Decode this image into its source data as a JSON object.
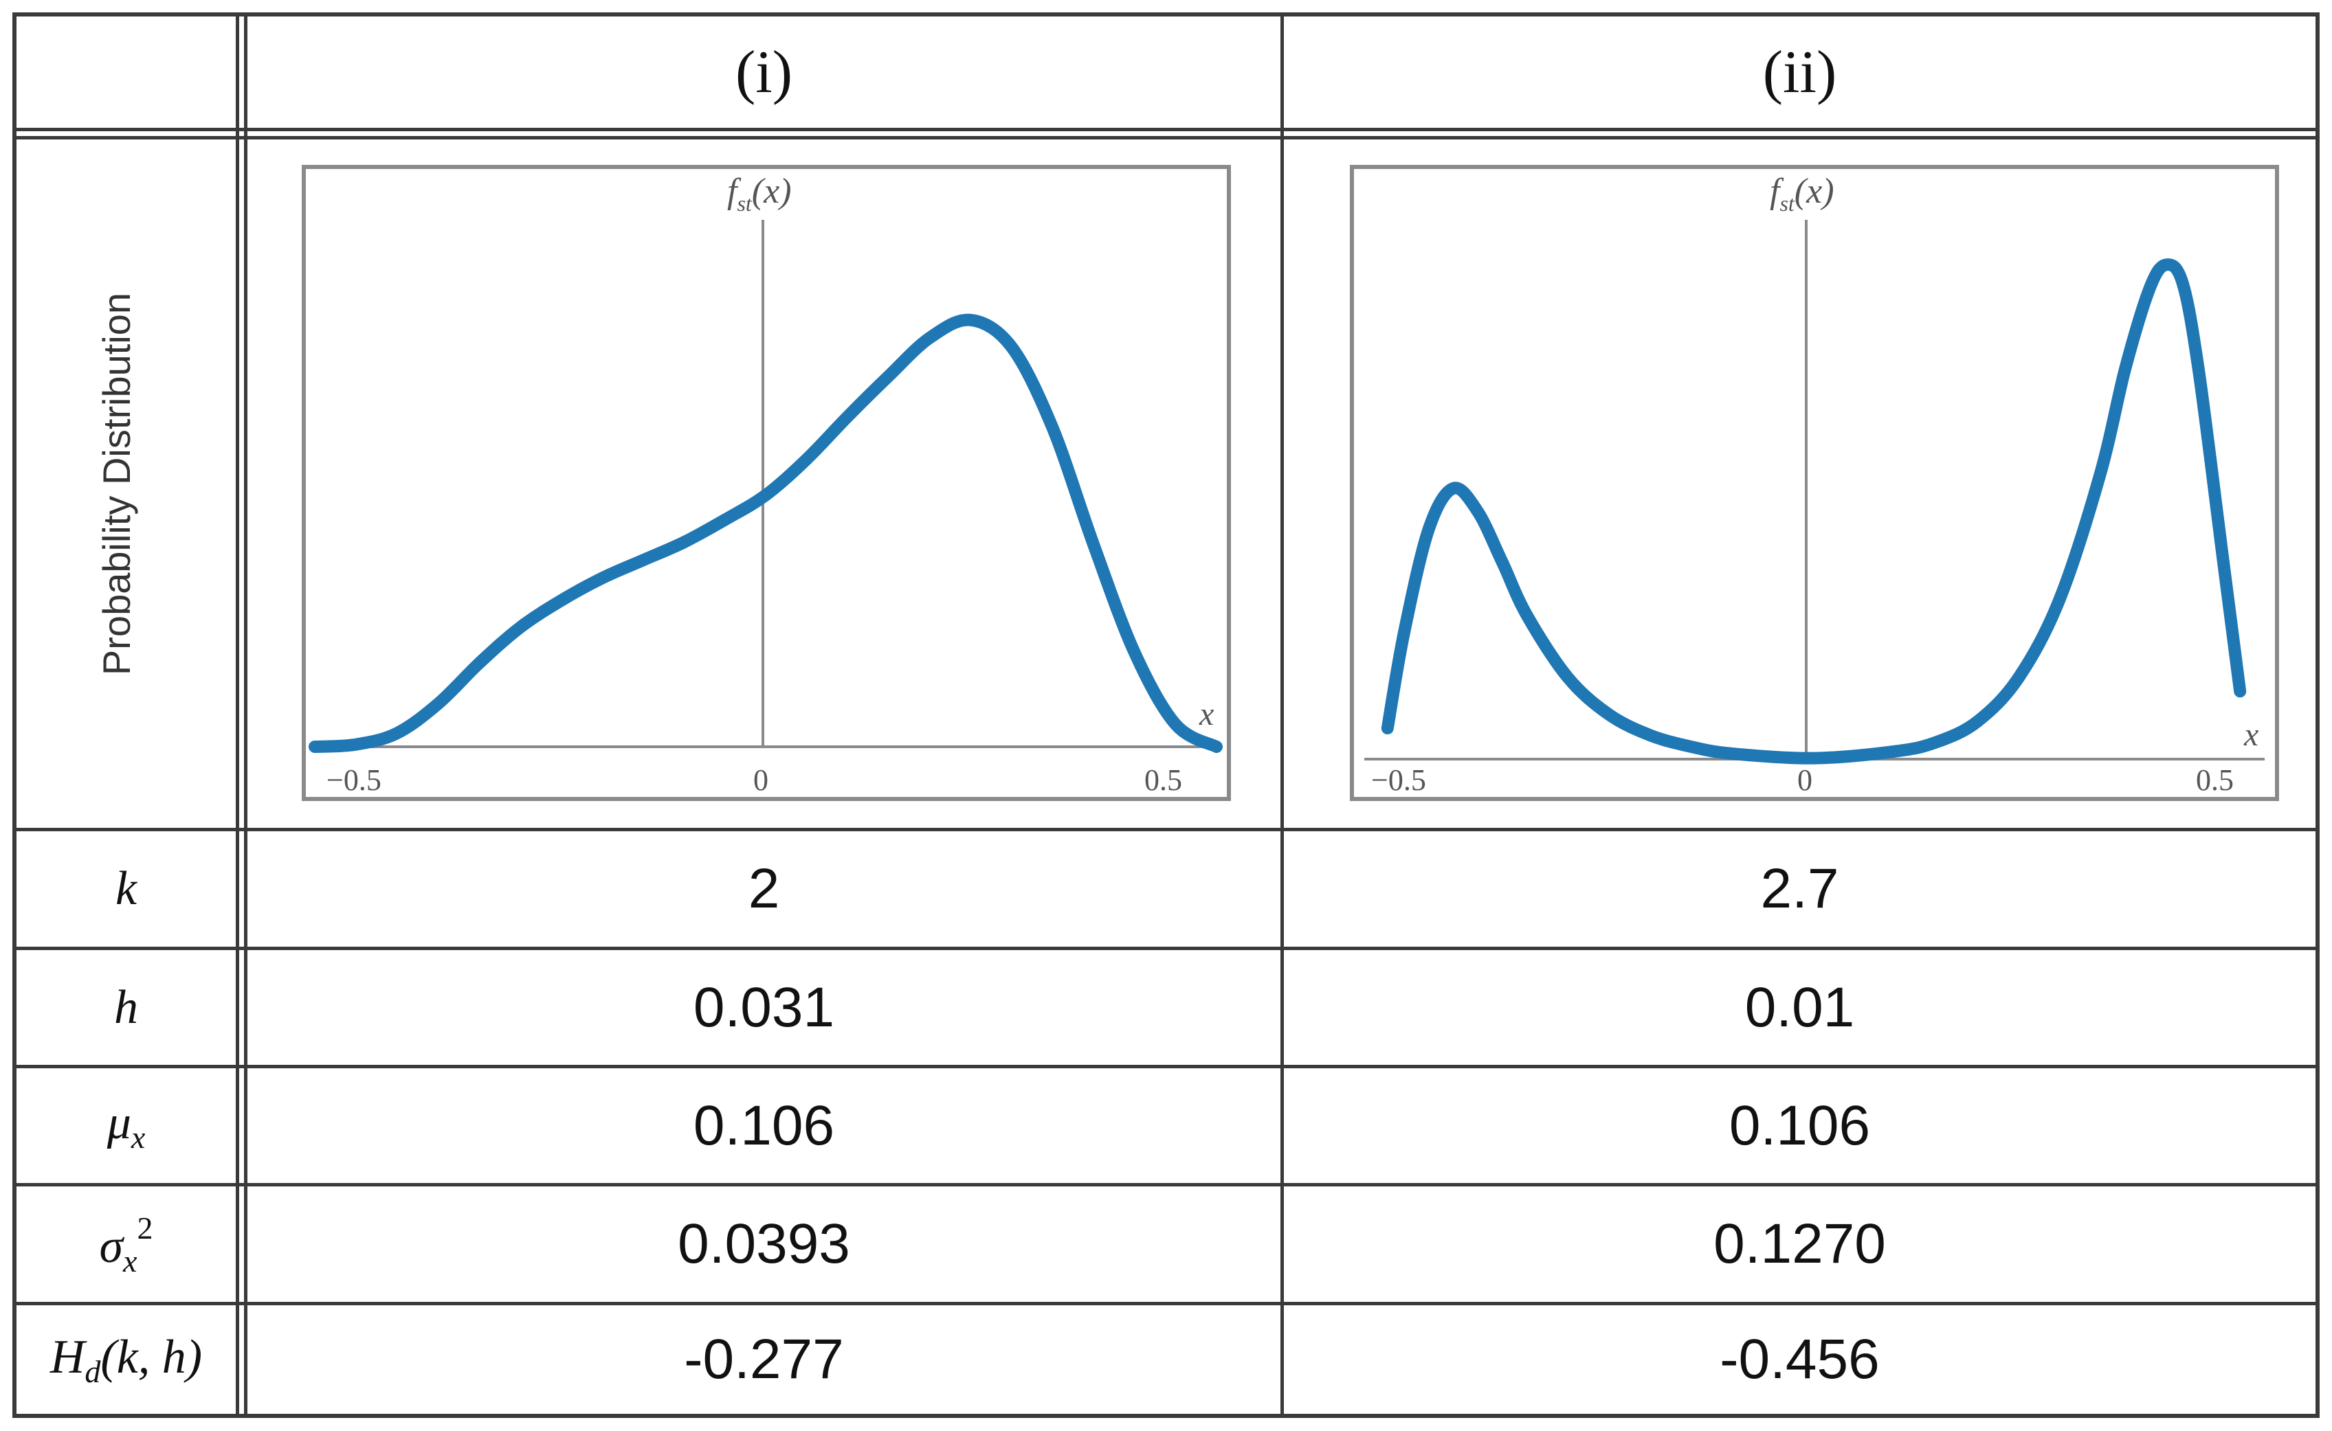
{
  "table": {
    "col_headers": [
      "(i)",
      "(ii)"
    ],
    "row_header_plot": "Probability Distribution",
    "rows": [
      {
        "symbol": "k",
        "values": [
          "2",
          "2.7"
        ]
      },
      {
        "symbol": "h",
        "values": [
          "0.031",
          "0.01"
        ]
      },
      {
        "symbol": "μ",
        "sub": "x",
        "values": [
          "0.106",
          "0.106"
        ]
      },
      {
        "symbol": "σ",
        "sub": "x",
        "sup": "2",
        "values": [
          "0.0393",
          "0.1270"
        ]
      },
      {
        "symbol": "H",
        "sub": "d",
        "args": "(k, h)",
        "values": [
          "-0.277",
          "-0.456"
        ]
      }
    ]
  },
  "chart_data": [
    {
      "type": "line",
      "ylabel": "f_st(x)",
      "xlabel": "x",
      "xticks": [
        "−0.5",
        "0",
        "0.5"
      ],
      "xlim": [
        -0.55,
        0.55
      ],
      "ylim": [
        0,
        2.3
      ],
      "line_color": "#1f77b4",
      "series": [
        {
          "x": [
            -0.55,
            -0.5,
            -0.45,
            -0.4,
            -0.35,
            -0.3,
            -0.25,
            -0.2,
            -0.15,
            -0.1,
            -0.05,
            0,
            0.05,
            0.1,
            0.15,
            0.2,
            0.25,
            0.3,
            0.35,
            0.4,
            0.45,
            0.5,
            0.55
          ],
          "y": [
            0.0,
            0.01,
            0.06,
            0.19,
            0.37,
            0.53,
            0.65,
            0.75,
            0.83,
            0.91,
            1.01,
            1.12,
            1.28,
            1.47,
            1.65,
            1.82,
            1.9,
            1.78,
            1.42,
            0.9,
            0.42,
            0.1,
            0.0
          ]
        }
      ]
    },
    {
      "type": "line",
      "ylabel": "f_st(x)",
      "xlabel": "x",
      "xticks": [
        "−0.5",
        "0",
        "0.5"
      ],
      "xlim": [
        -0.55,
        0.55
      ],
      "ylim": [
        0,
        2.3
      ],
      "line_color": "#1f77b4",
      "series": [
        {
          "x": [
            -0.52,
            -0.5,
            -0.47,
            -0.44,
            -0.41,
            -0.38,
            -0.35,
            -0.3,
            -0.25,
            -0.2,
            -0.15,
            -0.1,
            0,
            0.1,
            0.15,
            0.2,
            0.25,
            0.3,
            0.35,
            0.38,
            0.41,
            0.43,
            0.45,
            0.47,
            0.5,
            0.52
          ],
          "y": [
            0.14,
            0.55,
            1.0,
            1.18,
            1.08,
            0.86,
            0.63,
            0.36,
            0.2,
            0.11,
            0.06,
            0.03,
            0.01,
            0.04,
            0.08,
            0.17,
            0.36,
            0.7,
            1.25,
            1.7,
            2.05,
            2.15,
            2.07,
            1.68,
            0.85,
            0.3
          ]
        }
      ]
    }
  ]
}
